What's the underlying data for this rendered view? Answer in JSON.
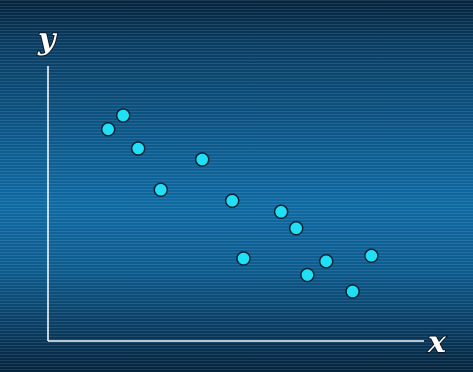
{
  "chart_data": {
    "type": "scatter",
    "xlabel": "x",
    "ylabel": "y",
    "xlim": [
      0,
      100
    ],
    "ylim": [
      0,
      100
    ],
    "grid": false,
    "colors": {
      "point": "#20e0f5",
      "axis": "#f2f6fa",
      "background": "#0d5c8f"
    },
    "points": [
      {
        "x": 16,
        "y": 77
      },
      {
        "x": 20,
        "y": 82
      },
      {
        "x": 24,
        "y": 70
      },
      {
        "x": 30,
        "y": 55
      },
      {
        "x": 41,
        "y": 66
      },
      {
        "x": 49,
        "y": 51
      },
      {
        "x": 52,
        "y": 30
      },
      {
        "x": 62,
        "y": 47
      },
      {
        "x": 66,
        "y": 41
      },
      {
        "x": 69,
        "y": 24
      },
      {
        "x": 74,
        "y": 29
      },
      {
        "x": 81,
        "y": 18
      },
      {
        "x": 86,
        "y": 31
      }
    ]
  }
}
